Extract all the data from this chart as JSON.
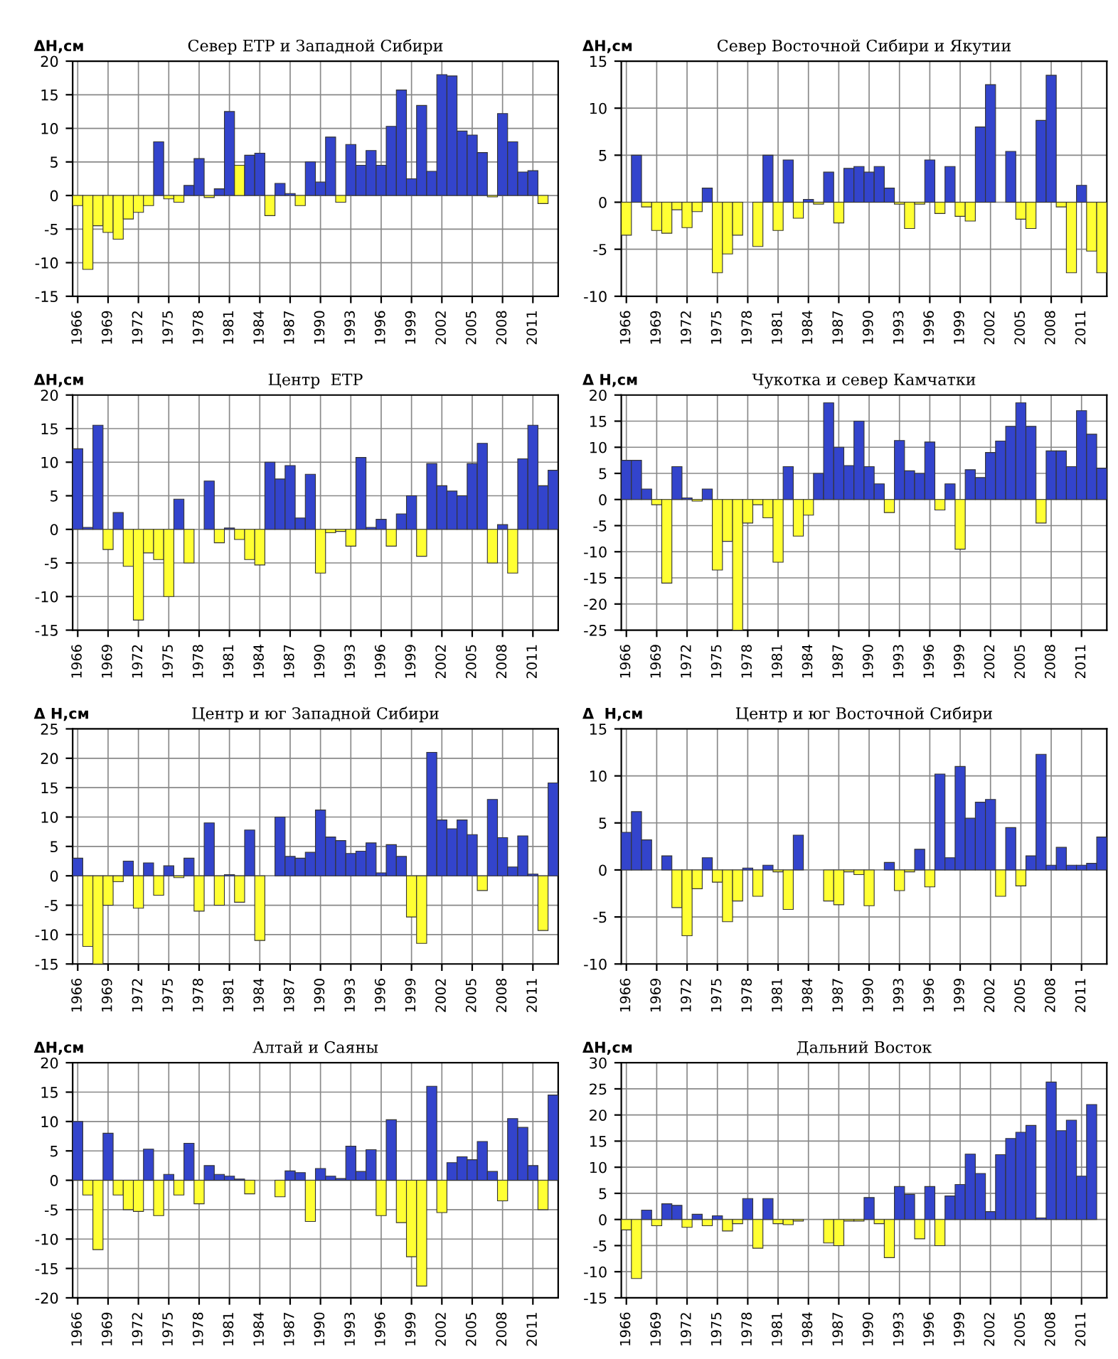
{
  "chart_data": [
    {
      "type": "bar",
      "title": "Север ЕТР и Западной Сибири",
      "ylabel": "ΔН,см",
      "grid": true,
      "ylim": [
        -15,
        20
      ],
      "yticks": [
        -15,
        -10,
        -5,
        0,
        5,
        10,
        15,
        20
      ],
      "categories": [
        "1966",
        null,
        null,
        "1969",
        null,
        null,
        "1972",
        null,
        null,
        "1975",
        null,
        null,
        "1978",
        null,
        null,
        "1981",
        null,
        null,
        "1984",
        null,
        null,
        "1987",
        null,
        null,
        "1990",
        null,
        null,
        "1993",
        null,
        null,
        "1996",
        null,
        null,
        "1999",
        null,
        null,
        "2002",
        null,
        null,
        "2005",
        null,
        null,
        "2008",
        null,
        null,
        "2011",
        null,
        null
      ],
      "values": [
        -1.5,
        -11,
        -4.5,
        -5.5,
        -6.5,
        -3.5,
        -2.5,
        -1.5,
        8,
        -0.5,
        -1,
        1.5,
        5.5,
        -0.3,
        1,
        12.5,
        4.5,
        6,
        6.3,
        -3,
        1.8,
        0.3,
        -1.5,
        5,
        2,
        8.7,
        -1,
        7.6,
        4.5,
        6.7,
        4.5,
        10.3,
        15.7,
        2.5,
        13.4,
        3.6,
        18,
        17.8,
        9.6,
        9,
        6.4,
        -0.2,
        12.2,
        8,
        3.5,
        3.7,
        -1.2,
        null
      ],
      "colors": [
        "#ffff33",
        "#ffff33",
        "#ffff33",
        "#ffff33",
        "#ffff33",
        "#ffff33",
        "#ffff33",
        "#ffff33",
        "#3344cc",
        "#ffff33",
        "#ffff33",
        "#3344cc",
        "#3344cc",
        "#ffff33",
        "#3344cc",
        "#3344cc",
        "#ffff33",
        "#3344cc",
        "#3344cc",
        "#ffff33",
        "#3344cc",
        "#3344cc",
        "#ffff33",
        "#3344cc",
        "#3344cc",
        "#3344cc",
        "#ffff33",
        "#3344cc",
        "#3344cc",
        "#3344cc",
        "#3344cc",
        "#3344cc",
        "#3344cc",
        "#3344cc",
        "#3344cc",
        "#3344cc",
        "#3344cc",
        "#3344cc",
        "#3344cc",
        "#3344cc",
        "#3344cc",
        "#ffff33",
        "#3344cc",
        "#3344cc",
        "#3344cc",
        "#3344cc",
        "#ffff33",
        "#3344cc"
      ]
    },
    {
      "type": "bar",
      "title": "Север Восточной Сибири и Якутии",
      "ylabel": "ΔН,см",
      "grid": true,
      "ylim": [
        -10,
        15
      ],
      "yticks": [
        -10,
        -5,
        0,
        5,
        10,
        15
      ],
      "categories": [
        "1966",
        null,
        null,
        "1969",
        null,
        null,
        "1972",
        null,
        null,
        "1975",
        null,
        null,
        "1978",
        null,
        null,
        "1981",
        null,
        null,
        "1984",
        null,
        null,
        "1987",
        null,
        null,
        "1990",
        null,
        null,
        "1993",
        null,
        null,
        "1996",
        null,
        null,
        "1999",
        null,
        null,
        "2002",
        null,
        null,
        "2005",
        null,
        null,
        "2008",
        null,
        null,
        "2011",
        null,
        null
      ],
      "values": [
        -3.5,
        5,
        -0.5,
        -3,
        -3.3,
        -0.8,
        -2.7,
        -1,
        1.5,
        -7.5,
        -5.5,
        -3.5,
        null,
        -4.7,
        5,
        -3,
        4.5,
        -1.7,
        0.3,
        -0.2,
        3.2,
        -2.2,
        3.6,
        3.8,
        3.2,
        3.8,
        1.5,
        -0.2,
        -2.8,
        -0.2,
        4.5,
        -1.2,
        3.8,
        -1.5,
        -2,
        8,
        12.5,
        null,
        5.4,
        -1.8,
        -2.8,
        8.7,
        13.5,
        -0.5,
        -7.5,
        1.8,
        -5.2,
        -7.5
      ],
      "colors": [
        "#ffff33",
        "#3344cc",
        "#ffff33",
        "#ffff33",
        "#ffff33",
        "#ffff33",
        "#ffff33",
        "#ffff33",
        "#3344cc",
        "#ffff33",
        "#ffff33",
        "#ffff33",
        "#3344cc",
        "#ffff33",
        "#3344cc",
        "#ffff33",
        "#3344cc",
        "#ffff33",
        "#3344cc",
        "#ffff33",
        "#3344cc",
        "#ffff33",
        "#3344cc",
        "#3344cc",
        "#3344cc",
        "#3344cc",
        "#3344cc",
        "#ffff33",
        "#ffff33",
        "#ffff33",
        "#3344cc",
        "#ffff33",
        "#3344cc",
        "#ffff33",
        "#ffff33",
        "#3344cc",
        "#3344cc",
        "#3344cc",
        "#3344cc",
        "#ffff33",
        "#ffff33",
        "#3344cc",
        "#3344cc",
        "#ffff33",
        "#ffff33",
        "#3344cc",
        "#ffff33",
        "#ffff33"
      ]
    },
    {
      "type": "bar",
      "title": "Центр  ЕТР",
      "ylabel": "ΔН,см",
      "grid": true,
      "ylim": [
        -15,
        20
      ],
      "yticks": [
        -15,
        -10,
        -5,
        0,
        5,
        10,
        15,
        20
      ],
      "categories": [
        "1966",
        null,
        null,
        "1969",
        null,
        null,
        "1972",
        null,
        null,
        "1975",
        null,
        null,
        "1978",
        null,
        null,
        "1981",
        null,
        null,
        "1984",
        null,
        null,
        "1987",
        null,
        null,
        "1990",
        null,
        null,
        "1993",
        null,
        null,
        "1996",
        null,
        null,
        "1999",
        null,
        null,
        "2002",
        null,
        null,
        "2005",
        null,
        null,
        "2008",
        null,
        null,
        "2011",
        null,
        null
      ],
      "values": [
        12,
        0.3,
        15.5,
        -3,
        2.5,
        -5.5,
        -13.5,
        -3.5,
        -4.5,
        -10,
        4.5,
        -5,
        null,
        7.2,
        -2,
        0.2,
        -1.5,
        -4.5,
        -5.3,
        10,
        7.5,
        9.5,
        1.7,
        8.2,
        -6.5,
        -0.5,
        -0.3,
        -2.5,
        10.7,
        0.3,
        1.5,
        -2.5,
        2.3,
        5,
        -4,
        9.8,
        6.5,
        5.7,
        5,
        9.8,
        12.8,
        -5,
        0.7,
        -6.5,
        10.5,
        15.5,
        6.5,
        8.8
      ],
      "colors": [
        "#3344cc",
        "#3344cc",
        "#3344cc",
        "#ffff33",
        "#3344cc",
        "#ffff33",
        "#ffff33",
        "#ffff33",
        "#ffff33",
        "#ffff33",
        "#3344cc",
        "#ffff33",
        "#3344cc",
        "#3344cc",
        "#ffff33",
        "#3344cc",
        "#ffff33",
        "#ffff33",
        "#ffff33",
        "#3344cc",
        "#3344cc",
        "#3344cc",
        "#3344cc",
        "#3344cc",
        "#ffff33",
        "#ffff33",
        "#ffff33",
        "#ffff33",
        "#3344cc",
        "#3344cc",
        "#3344cc",
        "#ffff33",
        "#3344cc",
        "#3344cc",
        "#ffff33",
        "#3344cc",
        "#3344cc",
        "#3344cc",
        "#3344cc",
        "#3344cc",
        "#3344cc",
        "#ffff33",
        "#3344cc",
        "#ffff33",
        "#3344cc",
        "#3344cc",
        "#3344cc",
        "#3344cc"
      ]
    },
    {
      "type": "bar",
      "title": "Чукотка и север Камчатки",
      "ylabel": "Δ Н,см",
      "grid": true,
      "ylim": [
        -25,
        20
      ],
      "yticks": [
        -25,
        -20,
        -15,
        -10,
        -5,
        0,
        5,
        10,
        15,
        20
      ],
      "categories": [
        "1966",
        null,
        null,
        "1969",
        null,
        null,
        "1972",
        null,
        null,
        "1975",
        null,
        null,
        "1978",
        null,
        null,
        "1981",
        null,
        null,
        "1984",
        null,
        null,
        "1987",
        null,
        null,
        "1990",
        null,
        null,
        "1993",
        null,
        null,
        "1996",
        null,
        null,
        "1999",
        null,
        null,
        "2002",
        null,
        null,
        "2005",
        null,
        null,
        "2008",
        null,
        null,
        "2011",
        null,
        null
      ],
      "values": [
        7.5,
        7.5,
        2,
        -1,
        -16,
        6.3,
        0.3,
        -0.3,
        2,
        -13.5,
        -8,
        -25,
        -4.5,
        -1,
        -3.5,
        -12,
        6.3,
        -7,
        -3,
        5,
        18.5,
        10,
        6.5,
        15,
        6.3,
        3,
        -2.5,
        11.3,
        5.5,
        5,
        11,
        -2,
        3,
        -9.5,
        5.7,
        4.2,
        9,
        11.2,
        14,
        18.5,
        14,
        -4.5,
        9.3,
        9.3,
        6.3,
        17,
        12.5,
        6
      ],
      "colors": [
        "#3344cc",
        "#3344cc",
        "#3344cc",
        "#ffff33",
        "#ffff33",
        "#3344cc",
        "#3344cc",
        "#ffff33",
        "#3344cc",
        "#ffff33",
        "#ffff33",
        "#ffff33",
        "#ffff33",
        "#ffff33",
        "#ffff33",
        "#ffff33",
        "#3344cc",
        "#ffff33",
        "#ffff33",
        "#3344cc",
        "#3344cc",
        "#3344cc",
        "#3344cc",
        "#3344cc",
        "#3344cc",
        "#3344cc",
        "#ffff33",
        "#3344cc",
        "#3344cc",
        "#3344cc",
        "#3344cc",
        "#ffff33",
        "#3344cc",
        "#ffff33",
        "#3344cc",
        "#3344cc",
        "#3344cc",
        "#3344cc",
        "#3344cc",
        "#3344cc",
        "#3344cc",
        "#ffff33",
        "#3344cc",
        "#3344cc",
        "#3344cc",
        "#3344cc",
        "#3344cc",
        "#3344cc"
      ]
    },
    {
      "type": "bar",
      "title": "Центр и юг Западной Сибири",
      "ylabel": "Δ Н,см",
      "grid": true,
      "ylim": [
        -15,
        25
      ],
      "yticks": [
        -15,
        -10,
        -5,
        0,
        5,
        10,
        15,
        20,
        25
      ],
      "categories": [
        "1966",
        null,
        null,
        "1969",
        null,
        null,
        "1972",
        null,
        null,
        "1975",
        null,
        null,
        "1978",
        null,
        null,
        "1981",
        null,
        null,
        "1984",
        null,
        null,
        "1987",
        null,
        null,
        "1990",
        null,
        null,
        "1993",
        null,
        null,
        "1996",
        null,
        null,
        "1999",
        null,
        null,
        "2002",
        null,
        null,
        "2005",
        null,
        null,
        "2008",
        null,
        null,
        "2011",
        null,
        null
      ],
      "values": [
        3,
        -12,
        -15,
        -5,
        -1,
        2.5,
        -5.5,
        2.2,
        -3.3,
        1.7,
        -0.3,
        3,
        -6,
        9,
        -5,
        0.2,
        -4.5,
        7.8,
        -11,
        null,
        10,
        3.3,
        3,
        4,
        11.2,
        6.6,
        6,
        3.8,
        4.2,
        5.6,
        0.5,
        5.3,
        3.3,
        -7,
        -11.5,
        21,
        9.5,
        8,
        9.5,
        7,
        -2.5,
        13,
        6.5,
        1.5,
        6.8,
        0.3,
        -9.3,
        15.8
      ],
      "colors": [
        "#3344cc",
        "#ffff33",
        "#ffff33",
        "#ffff33",
        "#ffff33",
        "#3344cc",
        "#ffff33",
        "#3344cc",
        "#ffff33",
        "#3344cc",
        "#ffff33",
        "#3344cc",
        "#ffff33",
        "#3344cc",
        "#ffff33",
        "#3344cc",
        "#ffff33",
        "#3344cc",
        "#ffff33",
        "#3344cc",
        "#3344cc",
        "#3344cc",
        "#3344cc",
        "#3344cc",
        "#3344cc",
        "#3344cc",
        "#3344cc",
        "#3344cc",
        "#3344cc",
        "#3344cc",
        "#3344cc",
        "#3344cc",
        "#3344cc",
        "#ffff33",
        "#ffff33",
        "#3344cc",
        "#3344cc",
        "#3344cc",
        "#3344cc",
        "#3344cc",
        "#ffff33",
        "#3344cc",
        "#3344cc",
        "#3344cc",
        "#3344cc",
        "#3344cc",
        "#ffff33",
        "#3344cc"
      ]
    },
    {
      "type": "bar",
      "title": "Центр и юг Восточной Сибири",
      "ylabel": "Δ  Н,см",
      "grid": true,
      "ylim": [
        -10,
        15
      ],
      "yticks": [
        -10,
        -5,
        0,
        5,
        10,
        15
      ],
      "categories": [
        "1966",
        null,
        null,
        "1969",
        null,
        null,
        "1972",
        null,
        null,
        "1975",
        null,
        null,
        "1978",
        null,
        null,
        "1981",
        null,
        null,
        "1984",
        null,
        null,
        "1987",
        null,
        null,
        "1990",
        null,
        null,
        "1993",
        null,
        null,
        "1996",
        null,
        null,
        "1999",
        null,
        null,
        "2002",
        null,
        null,
        "2005",
        null,
        null,
        "2008",
        null,
        null,
        "2011",
        null,
        null
      ],
      "values": [
        4,
        6.2,
        3.2,
        null,
        1.5,
        -4,
        -7,
        -2,
        1.3,
        -1.3,
        -5.5,
        -3.3,
        0.2,
        -2.8,
        0.5,
        -0.2,
        -4.2,
        3.7,
        null,
        null,
        -3.3,
        -3.7,
        -0.2,
        -0.5,
        -3.8,
        null,
        0.8,
        -2.2,
        -0.2,
        2.2,
        -1.8,
        10.2,
        1.3,
        11,
        5.5,
        7.2,
        7.5,
        -2.8,
        4.5,
        -1.7,
        1.5,
        12.3,
        0.5,
        2.4,
        0.5,
        0.5,
        0.7,
        3.5
      ],
      "colors": [
        "#3344cc",
        "#3344cc",
        "#3344cc",
        "#3344cc",
        "#3344cc",
        "#ffff33",
        "#ffff33",
        "#ffff33",
        "#3344cc",
        "#ffff33",
        "#ffff33",
        "#ffff33",
        "#3344cc",
        "#ffff33",
        "#3344cc",
        "#ffff33",
        "#ffff33",
        "#3344cc",
        "#3344cc",
        "#3344cc",
        "#ffff33",
        "#ffff33",
        "#ffff33",
        "#ffff33",
        "#ffff33",
        "#3344cc",
        "#3344cc",
        "#ffff33",
        "#ffff33",
        "#3344cc",
        "#ffff33",
        "#3344cc",
        "#3344cc",
        "#3344cc",
        "#3344cc",
        "#3344cc",
        "#3344cc",
        "#ffff33",
        "#3344cc",
        "#ffff33",
        "#3344cc",
        "#3344cc",
        "#3344cc",
        "#3344cc",
        "#3344cc",
        "#3344cc",
        "#3344cc",
        "#3344cc"
      ]
    },
    {
      "type": "bar",
      "title": "Алтай и Саяны",
      "ylabel": "ΔН,см",
      "grid": true,
      "ylim": [
        -20,
        20
      ],
      "yticks": [
        -20,
        -15,
        -10,
        -5,
        0,
        5,
        10,
        15,
        20
      ],
      "categories": [
        "1966",
        null,
        null,
        "1969",
        null,
        null,
        "1972",
        null,
        null,
        "1975",
        null,
        null,
        "1978",
        null,
        null,
        "1981",
        null,
        null,
        "1984",
        null,
        null,
        "1987",
        null,
        null,
        "1990",
        null,
        null,
        "1993",
        null,
        null,
        "1996",
        null,
        null,
        "1999",
        null,
        null,
        "2002",
        null,
        null,
        "2005",
        null,
        null,
        "2008",
        null,
        null,
        "2011",
        null,
        null
      ],
      "values": [
        10,
        -2.5,
        -11.8,
        8,
        -2.5,
        -5,
        -5.3,
        5.3,
        -6,
        1,
        -2.5,
        6.3,
        -4,
        2.5,
        1,
        0.7,
        0.2,
        -2.3,
        null,
        null,
        -2.8,
        1.6,
        1.3,
        -7,
        2,
        0.7,
        0.3,
        5.8,
        1.5,
        5.2,
        -6,
        10.3,
        -7.2,
        -13,
        -18,
        16,
        -5.5,
        3,
        4,
        3.5,
        6.6,
        1.5,
        -3.5,
        10.5,
        9,
        2.5,
        -5,
        14.5
      ],
      "colors": [
        "#3344cc",
        "#ffff33",
        "#ffff33",
        "#3344cc",
        "#ffff33",
        "#ffff33",
        "#ffff33",
        "#3344cc",
        "#ffff33",
        "#3344cc",
        "#ffff33",
        "#3344cc",
        "#ffff33",
        "#3344cc",
        "#3344cc",
        "#3344cc",
        "#3344cc",
        "#ffff33",
        "#3344cc",
        "#3344cc",
        "#ffff33",
        "#3344cc",
        "#3344cc",
        "#ffff33",
        "#3344cc",
        "#3344cc",
        "#3344cc",
        "#3344cc",
        "#3344cc",
        "#3344cc",
        "#ffff33",
        "#3344cc",
        "#ffff33",
        "#ffff33",
        "#ffff33",
        "#3344cc",
        "#ffff33",
        "#3344cc",
        "#3344cc",
        "#3344cc",
        "#3344cc",
        "#3344cc",
        "#ffff33",
        "#3344cc",
        "#3344cc",
        "#3344cc",
        "#ffff33",
        "#3344cc"
      ]
    },
    {
      "type": "bar",
      "title": "Дальний Восток",
      "ylabel": "ΔН,см",
      "grid": true,
      "ylim": [
        -15,
        30
      ],
      "yticks": [
        -15,
        -10,
        -5,
        0,
        5,
        10,
        15,
        20,
        25,
        30
      ],
      "categories": [
        "1966",
        null,
        null,
        "1969",
        null,
        null,
        "1972",
        null,
        null,
        "1975",
        null,
        null,
        "1978",
        null,
        null,
        "1981",
        null,
        null,
        "1984",
        null,
        null,
        "1987",
        null,
        null,
        "1990",
        null,
        null,
        "1993",
        null,
        null,
        "1996",
        null,
        null,
        "1999",
        null,
        null,
        "2002",
        null,
        null,
        "2005",
        null,
        null,
        "2008",
        null,
        null,
        "2011",
        null,
        null
      ],
      "values": [
        -2,
        -11.3,
        1.8,
        -1.2,
        3,
        2.7,
        -1.5,
        1,
        -1.2,
        0.7,
        -2.2,
        -0.8,
        4,
        -5.5,
        4,
        -0.8,
        -1,
        -0.3,
        null,
        null,
        -4.5,
        -5,
        -0.3,
        -0.3,
        4.2,
        -0.8,
        -7.3,
        6.3,
        4.8,
        -3.7,
        6.3,
        -5,
        4.5,
        6.7,
        12.5,
        8.8,
        1.5,
        12.4,
        15.5,
        16.7,
        18,
        0.3,
        26.3,
        17,
        19,
        8.3,
        22,
        null
      ],
      "colors": [
        "#ffff33",
        "#ffff33",
        "#3344cc",
        "#ffff33",
        "#3344cc",
        "#3344cc",
        "#ffff33",
        "#3344cc",
        "#ffff33",
        "#3344cc",
        "#ffff33",
        "#ffff33",
        "#3344cc",
        "#ffff33",
        "#3344cc",
        "#ffff33",
        "#ffff33",
        "#ffff33",
        "#3344cc",
        "#3344cc",
        "#ffff33",
        "#ffff33",
        "#ffff33",
        "#ffff33",
        "#3344cc",
        "#ffff33",
        "#ffff33",
        "#3344cc",
        "#3344cc",
        "#ffff33",
        "#3344cc",
        "#ffff33",
        "#3344cc",
        "#3344cc",
        "#3344cc",
        "#3344cc",
        "#3344cc",
        "#3344cc",
        "#3344cc",
        "#3344cc",
        "#3344cc",
        "#3344cc",
        "#3344cc",
        "#3344cc",
        "#3344cc",
        "#3344cc",
        "#3344cc",
        "#3344cc"
      ]
    }
  ]
}
